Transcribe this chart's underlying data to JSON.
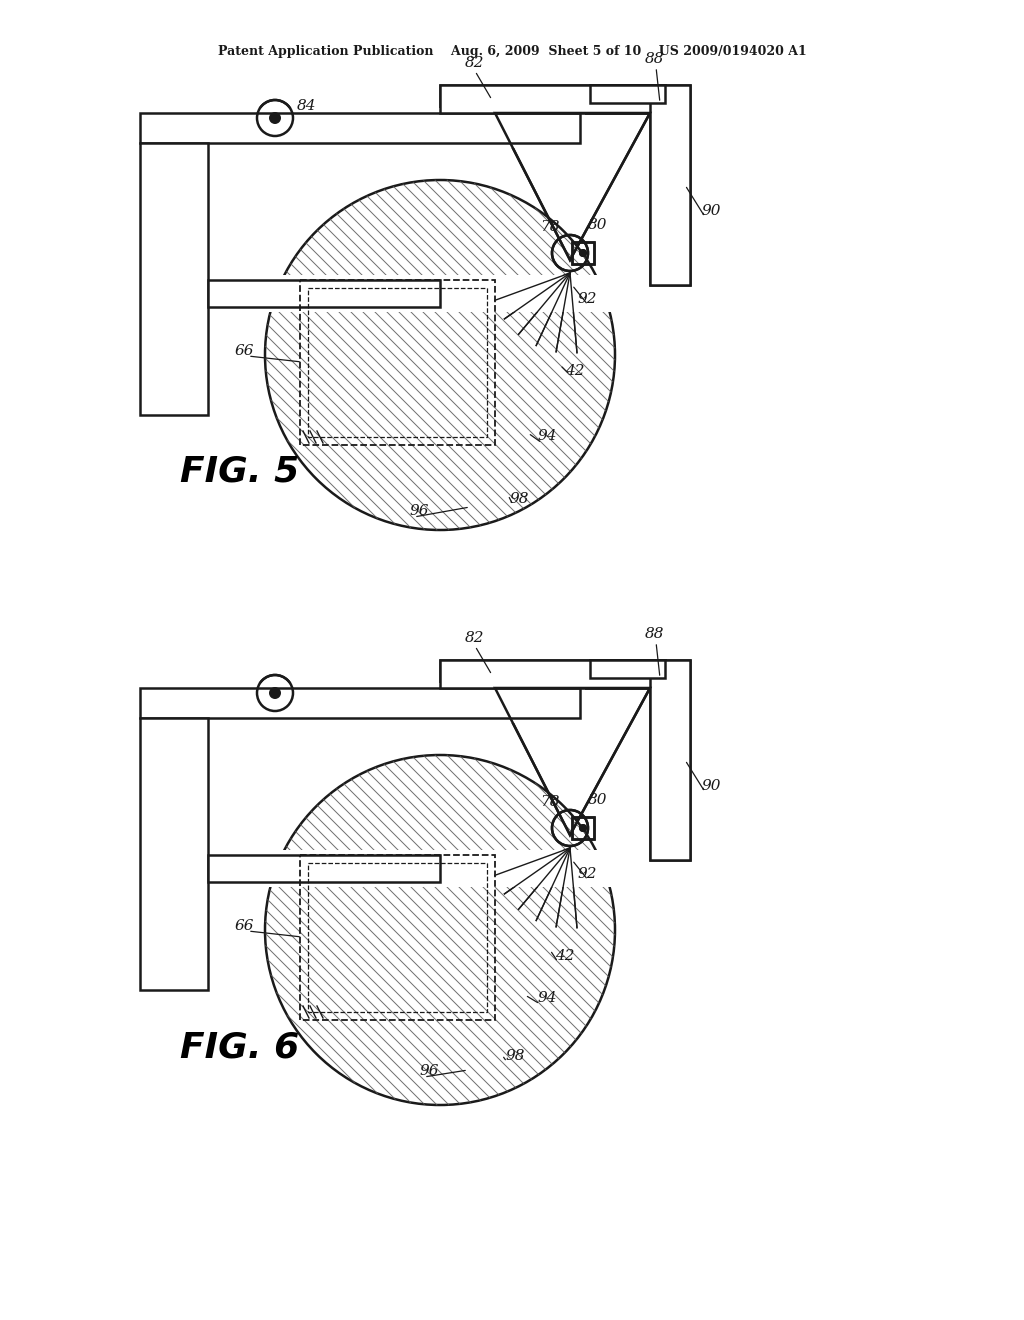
{
  "bg_color": "#ffffff",
  "line_color": "#1a1a1a",
  "header_text": "Patent Application Publication    Aug. 6, 2009  Sheet 5 of 10    US 2009/0194020 A1",
  "fig5_label": "FIG. 5",
  "fig6_label": "FIG. 6"
}
